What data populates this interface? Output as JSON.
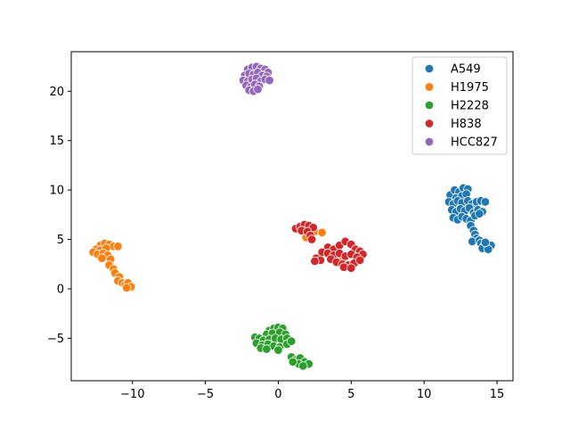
{
  "chart_data": {
    "type": "scatter",
    "title": "",
    "xlabel": "",
    "ylabel": "",
    "xlim": [
      -14.2,
      16.1
    ],
    "ylim": [
      -9.3,
      24.0
    ],
    "xticks": [
      -10,
      -5,
      0,
      5,
      10,
      15
    ],
    "yticks": [
      -5,
      0,
      5,
      10,
      15,
      20
    ],
    "grid": false,
    "legend_position": "top-right",
    "series": [
      {
        "name": "A549",
        "color": "#1f77b4",
        "points": [
          [
            11.8,
            9.5
          ],
          [
            12.1,
            10.0
          ],
          [
            12.4,
            9.8
          ],
          [
            12.7,
            10.2
          ],
          [
            13.0,
            10.1
          ],
          [
            12.2,
            9.2
          ],
          [
            12.6,
            9.4
          ],
          [
            12.9,
            9.6
          ],
          [
            11.7,
            8.8
          ],
          [
            12.0,
            8.6
          ],
          [
            12.3,
            8.9
          ],
          [
            12.6,
            8.7
          ],
          [
            13.0,
            8.9
          ],
          [
            13.3,
            8.6
          ],
          [
            13.6,
            8.8
          ],
          [
            13.9,
            8.9
          ],
          [
            14.2,
            8.8
          ],
          [
            11.9,
            8.0
          ],
          [
            12.2,
            7.8
          ],
          [
            12.5,
            8.1
          ],
          [
            12.8,
            7.9
          ],
          [
            13.1,
            8.2
          ],
          [
            13.4,
            7.7
          ],
          [
            13.7,
            8.0
          ],
          [
            14.0,
            7.8
          ],
          [
            12.0,
            7.2
          ],
          [
            12.3,
            7.0
          ],
          [
            12.6,
            7.3
          ],
          [
            12.9,
            7.1
          ],
          [
            13.2,
            6.9
          ],
          [
            13.5,
            7.4
          ],
          [
            13.8,
            7.6
          ],
          [
            13.2,
            6.4
          ],
          [
            13.4,
            5.9
          ],
          [
            13.5,
            5.5
          ],
          [
            13.6,
            5.1
          ],
          [
            13.3,
            4.8
          ],
          [
            13.8,
            4.9
          ],
          [
            13.9,
            4.6
          ],
          [
            14.1,
            4.3
          ],
          [
            14.3,
            4.5
          ],
          [
            14.5,
            4.2
          ],
          [
            14.6,
            4.4
          ],
          [
            14.0,
            4.1
          ],
          [
            14.4,
            4.0
          ],
          [
            14.2,
            4.7
          ]
        ]
      },
      {
        "name": "H1975",
        "color": "#ff7f0e",
        "points": [
          [
            -12.2,
            4.4
          ],
          [
            -11.9,
            4.6
          ],
          [
            -11.6,
            4.5
          ],
          [
            -11.3,
            4.3
          ],
          [
            -12.5,
            4.0
          ],
          [
            -12.2,
            3.9
          ],
          [
            -11.8,
            4.1
          ],
          [
            -12.7,
            3.7
          ],
          [
            -12.4,
            3.5
          ],
          [
            -12.0,
            3.6
          ],
          [
            -11.7,
            3.4
          ],
          [
            -12.1,
            3.1
          ],
          [
            -11.5,
            3.0
          ],
          [
            -11.0,
            4.3
          ],
          [
            -11.6,
            2.4
          ],
          [
            -11.3,
            2.0
          ],
          [
            -11.2,
            1.6
          ],
          [
            -10.9,
            1.2
          ],
          [
            -11.0,
            0.8
          ],
          [
            -10.7,
            0.6
          ],
          [
            -10.5,
            0.4
          ],
          [
            -10.3,
            0.6
          ],
          [
            -10.1,
            0.2
          ],
          [
            -10.4,
            0.1
          ],
          [
            1.9,
            5.2
          ],
          [
            2.5,
            5.8
          ],
          [
            3.0,
            5.7
          ],
          [
            4.0,
            2.9
          ],
          [
            4.3,
            3.3
          ]
        ]
      },
      {
        "name": "H2228",
        "color": "#2ca02c",
        "points": [
          [
            -0.6,
            -4.2
          ],
          [
            -0.3,
            -4.0
          ],
          [
            0.0,
            -3.9
          ],
          [
            0.3,
            -4.0
          ],
          [
            -0.8,
            -4.6
          ],
          [
            -0.4,
            -4.5
          ],
          [
            0.1,
            -4.4
          ],
          [
            0.5,
            -4.6
          ],
          [
            -1.6,
            -4.9
          ],
          [
            -1.3,
            -5.0
          ],
          [
            -1.0,
            -5.2
          ],
          [
            -0.6,
            -5.1
          ],
          [
            -0.2,
            -5.0
          ],
          [
            0.2,
            -5.1
          ],
          [
            0.6,
            -5.0
          ],
          [
            -1.5,
            -5.5
          ],
          [
            -1.1,
            -5.7
          ],
          [
            -0.7,
            -5.6
          ],
          [
            -0.3,
            -5.8
          ],
          [
            0.1,
            -5.9
          ],
          [
            0.6,
            -5.6
          ],
          [
            0.9,
            -5.3
          ],
          [
            -1.2,
            -6.0
          ],
          [
            -0.8,
            -6.1
          ],
          [
            0.0,
            -6.2
          ],
          [
            0.9,
            -6.9
          ],
          [
            1.2,
            -7.2
          ],
          [
            1.5,
            -7.0
          ],
          [
            1.8,
            -7.4
          ],
          [
            2.1,
            -7.6
          ],
          [
            1.4,
            -7.6
          ],
          [
            1.7,
            -7.8
          ],
          [
            1.0,
            -7.4
          ]
        ]
      },
      {
        "name": "H838",
        "color": "#d62728",
        "points": [
          [
            1.2,
            6.1
          ],
          [
            1.5,
            6.3
          ],
          [
            1.8,
            6.5
          ],
          [
            2.1,
            6.4
          ],
          [
            2.4,
            6.2
          ],
          [
            1.6,
            5.9
          ],
          [
            2.0,
            5.8
          ],
          [
            2.2,
            5.4
          ],
          [
            2.3,
            5.0
          ],
          [
            3.4,
            4.2
          ],
          [
            3.8,
            4.0
          ],
          [
            4.2,
            4.4
          ],
          [
            4.6,
            4.8
          ],
          [
            5.0,
            4.5
          ],
          [
            5.3,
            4.0
          ],
          [
            5.6,
            3.8
          ],
          [
            5.8,
            3.5
          ],
          [
            3.0,
            3.7
          ],
          [
            3.4,
            3.6
          ],
          [
            3.8,
            3.4
          ],
          [
            4.2,
            3.6
          ],
          [
            4.6,
            3.3
          ],
          [
            5.0,
            3.5
          ],
          [
            5.4,
            3.2
          ],
          [
            2.6,
            3.1
          ],
          [
            2.9,
            2.9
          ],
          [
            2.5,
            2.8
          ],
          [
            3.6,
            3.0
          ],
          [
            4.0,
            2.7
          ],
          [
            4.4,
            2.5
          ],
          [
            4.8,
            2.4
          ],
          [
            5.2,
            2.6
          ],
          [
            5.6,
            2.9
          ],
          [
            4.5,
            2.2
          ],
          [
            5.0,
            2.1
          ]
        ]
      },
      {
        "name": "HCC827",
        "color": "#9467bd",
        "points": [
          [
            -2.1,
            22.2
          ],
          [
            -1.8,
            22.4
          ],
          [
            -1.5,
            22.5
          ],
          [
            -1.2,
            22.3
          ],
          [
            -0.9,
            22.2
          ],
          [
            -0.7,
            21.9
          ],
          [
            -2.3,
            21.6
          ],
          [
            -2.0,
            21.8
          ],
          [
            -1.7,
            21.7
          ],
          [
            -1.4,
            21.9
          ],
          [
            -1.1,
            21.6
          ],
          [
            -0.8,
            21.5
          ],
          [
            -2.4,
            21.1
          ],
          [
            -2.1,
            21.0
          ],
          [
            -1.8,
            21.2
          ],
          [
            -1.5,
            21.3
          ],
          [
            -1.2,
            21.0
          ],
          [
            -0.9,
            21.2
          ],
          [
            -0.6,
            21.1
          ],
          [
            -2.2,
            20.6
          ],
          [
            -1.9,
            20.4
          ],
          [
            -1.6,
            20.7
          ],
          [
            -1.3,
            20.5
          ],
          [
            -2.0,
            20.1
          ],
          [
            -1.7,
            20.0
          ],
          [
            -1.4,
            20.2
          ]
        ]
      }
    ]
  }
}
